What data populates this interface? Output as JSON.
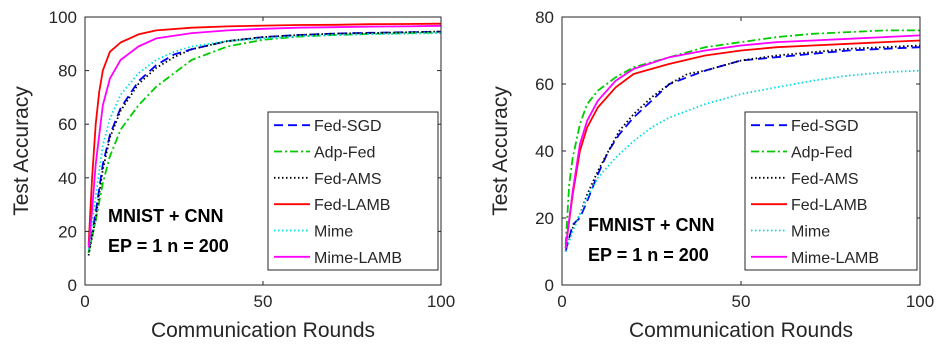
{
  "chart_data": [
    {
      "type": "line",
      "xlabel": "Communication Rounds",
      "ylabel": "Test Accuracy",
      "xlim": [
        0,
        100
      ],
      "ylim": [
        0,
        100
      ],
      "xticks": [
        0,
        50,
        100
      ],
      "yticks": [
        0,
        20,
        40,
        60,
        80,
        100
      ],
      "grid": false,
      "legend_position": "bottom-right",
      "annotations": [
        "MNIST + CNN",
        "EP = 1  n = 200"
      ],
      "series": [
        {
          "name": "Fed-SGD",
          "color": "#0000ff",
          "dash": "dashed",
          "x": [
            1,
            3,
            5,
            7,
            10,
            15,
            20,
            25,
            30,
            40,
            50,
            60,
            70,
            80,
            90,
            100
          ],
          "y": [
            12,
            27,
            45,
            56,
            66,
            76,
            82,
            86,
            88,
            91,
            92.5,
            93.3,
            93.8,
            94.1,
            94.3,
            94.5
          ]
        },
        {
          "name": "Adp-Fed",
          "color": "#00cc00",
          "dash": "dashdot",
          "x": [
            1,
            3,
            5,
            7,
            10,
            15,
            20,
            25,
            30,
            40,
            50,
            60,
            70,
            80,
            90,
            100
          ],
          "y": [
            12,
            24,
            38,
            48,
            58,
            67,
            74,
            79,
            84,
            89,
            91.5,
            92.7,
            93.3,
            93.7,
            94,
            94.2
          ]
        },
        {
          "name": "Fed-AMS",
          "color": "#000000",
          "dash": "dotted",
          "x": [
            1,
            3,
            5,
            7,
            10,
            15,
            20,
            25,
            30,
            40,
            50,
            60,
            70,
            80,
            90,
            100
          ],
          "y": [
            11,
            25,
            43,
            55,
            65,
            75,
            81,
            85,
            88,
            91,
            92.5,
            93.3,
            93.8,
            94,
            94.3,
            94.6
          ]
        },
        {
          "name": "Fed-LAMB",
          "color": "#ff0000",
          "dash": "solid",
          "x": [
            1,
            2,
            3,
            4,
            5,
            7,
            10,
            15,
            20,
            30,
            40,
            50,
            60,
            70,
            80,
            90,
            100
          ],
          "y": [
            15,
            40,
            60,
            72,
            80,
            87,
            90.5,
            93.5,
            95,
            96,
            96.5,
            96.8,
            97,
            97.1,
            97.3,
            97.4,
            97.5
          ]
        },
        {
          "name": "Mime",
          "color": "#00dddd",
          "dash": "dotted",
          "x": [
            1,
            3,
            5,
            7,
            10,
            15,
            20,
            25,
            30,
            40,
            50,
            60,
            70,
            80,
            90,
            100
          ],
          "y": [
            13,
            33,
            52,
            62,
            71,
            79,
            84,
            87,
            89,
            91,
            92,
            92.8,
            93.3,
            93.6,
            93.8,
            94
          ]
        },
        {
          "name": "Mime-LAMB",
          "color": "#ff00ff",
          "dash": "solid",
          "x": [
            1,
            2,
            3,
            5,
            7,
            10,
            15,
            20,
            30,
            40,
            50,
            60,
            70,
            80,
            90,
            100
          ],
          "y": [
            14,
            28,
            45,
            67,
            77,
            84,
            89,
            92,
            94,
            95,
            95.6,
            96,
            96.2,
            96.4,
            96.5,
            96.7
          ]
        }
      ]
    },
    {
      "type": "line",
      "xlabel": "Communication Rounds",
      "ylabel": "Test Accuracy",
      "xlim": [
        0,
        100
      ],
      "ylim": [
        0,
        80
      ],
      "xticks": [
        0,
        50,
        100
      ],
      "yticks": [
        0,
        20,
        40,
        60,
        80
      ],
      "grid": false,
      "legend_position": "bottom-right",
      "annotations": [
        "FMNIST + CNN",
        "EP = 1 n = 200"
      ],
      "series": [
        {
          "name": "Fed-SGD",
          "color": "#0000ff",
          "dash": "dashed",
          "x": [
            1,
            3,
            5,
            7,
            10,
            13,
            16,
            20,
            25,
            30,
            35,
            40,
            50,
            60,
            70,
            80,
            90,
            100
          ],
          "y": [
            10,
            18,
            20,
            25,
            33,
            40,
            45,
            50,
            55,
            60,
            62,
            64,
            67,
            68,
            69,
            70,
            70.5,
            71
          ]
        },
        {
          "name": "Adp-Fed",
          "color": "#00cc00",
          "dash": "dashdot",
          "x": [
            1,
            2,
            3,
            5,
            7,
            10,
            15,
            20,
            30,
            40,
            50,
            60,
            70,
            80,
            90,
            100
          ],
          "y": [
            12,
            30,
            38,
            48,
            54,
            58,
            62,
            65,
            68,
            71,
            72.5,
            74,
            75,
            75.5,
            76,
            76
          ]
        },
        {
          "name": "Fed-AMS",
          "color": "#000000",
          "dash": "dotted",
          "x": [
            1,
            3,
            5,
            7,
            10,
            13,
            16,
            20,
            25,
            30,
            35,
            40,
            50,
            60,
            70,
            80,
            90,
            100
          ],
          "y": [
            10,
            17,
            21,
            27,
            34,
            40,
            46,
            51,
            56,
            60,
            63,
            64,
            67,
            68.5,
            69.5,
            70.5,
            71,
            71.5
          ]
        },
        {
          "name": "Fed-LAMB",
          "color": "#ff0000",
          "dash": "solid",
          "x": [
            1,
            3,
            5,
            7,
            10,
            15,
            20,
            30,
            40,
            50,
            60,
            70,
            80,
            90,
            100
          ],
          "y": [
            11,
            27,
            40,
            47,
            53,
            59,
            63,
            66,
            68.5,
            70,
            71,
            71.5,
            72,
            72.5,
            73
          ]
        },
        {
          "name": "Mime",
          "color": "#00dddd",
          "dash": "dotted",
          "x": [
            1,
            3,
            5,
            7,
            10,
            15,
            20,
            25,
            30,
            40,
            50,
            60,
            70,
            80,
            90,
            100
          ],
          "y": [
            10,
            16,
            21,
            26,
            32,
            38,
            43,
            47,
            50,
            54,
            57,
            59,
            61,
            62.5,
            63.5,
            64
          ]
        },
        {
          "name": "Mime-LAMB",
          "color": "#ff00ff",
          "dash": "solid",
          "x": [
            1,
            3,
            5,
            7,
            10,
            15,
            20,
            30,
            40,
            50,
            60,
            70,
            80,
            90,
            100
          ],
          "y": [
            11,
            28,
            42,
            49,
            55,
            61,
            64.5,
            68,
            70,
            71.5,
            72.5,
            73,
            73.5,
            74,
            74.5
          ]
        }
      ]
    }
  ]
}
